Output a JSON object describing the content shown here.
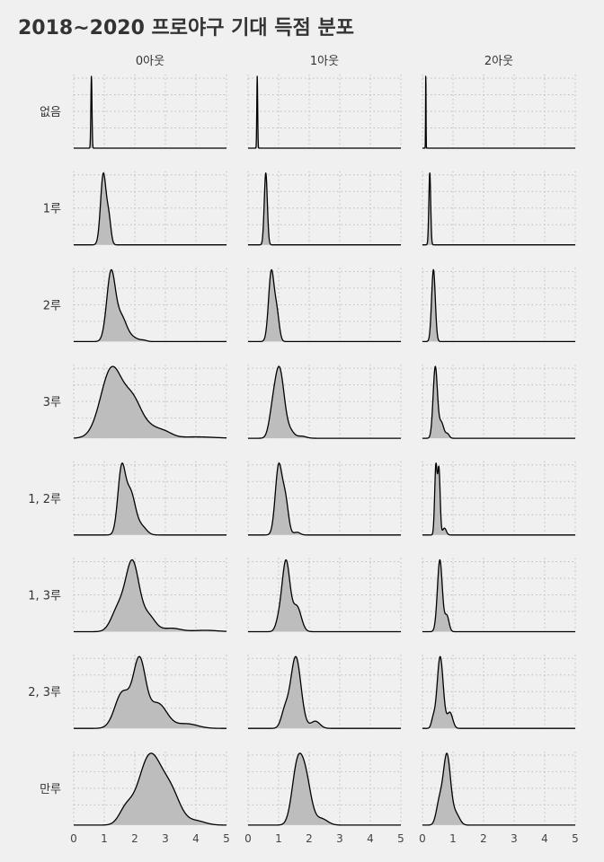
{
  "chart_data": {
    "type": "area",
    "title": "2018~2020 프로야구 기대 득점 분포",
    "columns": [
      "0아웃",
      "1아웃",
      "2아웃"
    ],
    "rows": [
      "없음",
      "1루",
      "2루",
      "3루",
      "1, 2루",
      "1, 3루",
      "2, 3루",
      "만루"
    ],
    "x_ticks": [
      "0",
      "1",
      "2",
      "3",
      "4",
      "5"
    ],
    "xlim": [
      0,
      5
    ],
    "fill_color": "#bdbdbd",
    "line_color": "#000000",
    "grid": "dotted",
    "panels": [
      {
        "row": "없음",
        "col": "0아웃",
        "peaks": [
          [
            0.58,
            0.018,
            1.0
          ]
        ]
      },
      {
        "row": "없음",
        "col": "1아웃",
        "peaks": [
          [
            0.3,
            0.014,
            1.0
          ]
        ]
      },
      {
        "row": "없음",
        "col": "2아웃",
        "peaks": [
          [
            0.11,
            0.007,
            1.0
          ]
        ]
      },
      {
        "row": "1루",
        "col": "0아웃",
        "peaks": [
          [
            0.97,
            0.09,
            1.0
          ],
          [
            1.15,
            0.07,
            0.35
          ]
        ]
      },
      {
        "row": "1루",
        "col": "1아웃",
        "peaks": [
          [
            0.58,
            0.05,
            1.0
          ]
        ]
      },
      {
        "row": "1루",
        "col": "2아웃",
        "peaks": [
          [
            0.24,
            0.03,
            1.0
          ]
        ]
      },
      {
        "row": "2루",
        "col": "0아웃",
        "peaks": [
          [
            1.22,
            0.14,
            1.0
          ],
          [
            1.55,
            0.17,
            0.35
          ],
          [
            1.9,
            0.2,
            0.06
          ],
          [
            2.3,
            0.1,
            0.015
          ]
        ]
      },
      {
        "row": "2루",
        "col": "1아웃",
        "peaks": [
          [
            0.76,
            0.09,
            1.0
          ],
          [
            0.94,
            0.08,
            0.4
          ]
        ]
      },
      {
        "row": "2루",
        "col": "2아웃",
        "peaks": [
          [
            0.36,
            0.06,
            1.0
          ]
        ]
      },
      {
        "row": "3루",
        "col": "0아웃",
        "peaks": [
          [
            1.25,
            0.36,
            1.0
          ],
          [
            1.95,
            0.28,
            0.45
          ],
          [
            2.5,
            0.3,
            0.14
          ],
          [
            3.0,
            0.25,
            0.07
          ],
          [
            4.0,
            0.6,
            0.02
          ]
        ]
      },
      {
        "row": "3루",
        "col": "1아웃",
        "peaks": [
          [
            1.02,
            0.16,
            1.0
          ],
          [
            0.78,
            0.11,
            0.2
          ],
          [
            1.4,
            0.12,
            0.08
          ],
          [
            1.75,
            0.15,
            0.03
          ]
        ]
      },
      {
        "row": "3루",
        "col": "2아웃",
        "peaks": [
          [
            0.42,
            0.07,
            1.0
          ],
          [
            0.62,
            0.08,
            0.22
          ],
          [
            0.82,
            0.06,
            0.06
          ]
        ]
      },
      {
        "row": "1, 2루",
        "col": "0아웃",
        "peaks": [
          [
            1.56,
            0.12,
            1.0
          ],
          [
            1.85,
            0.17,
            0.72
          ],
          [
            2.25,
            0.15,
            0.12
          ]
        ]
      },
      {
        "row": "1, 2루",
        "col": "1아웃",
        "peaks": [
          [
            1.0,
            0.11,
            1.0
          ],
          [
            1.22,
            0.1,
            0.5
          ],
          [
            1.6,
            0.1,
            0.04
          ]
        ]
      },
      {
        "row": "1, 2루",
        "col": "2아웃",
        "peaks": [
          [
            0.44,
            0.04,
            1.0
          ],
          [
            0.54,
            0.04,
            0.95
          ],
          [
            0.72,
            0.06,
            0.1
          ]
        ]
      },
      {
        "row": "1, 3루",
        "col": "0아웃",
        "peaks": [
          [
            1.92,
            0.22,
            1.0
          ],
          [
            1.45,
            0.22,
            0.32
          ],
          [
            2.45,
            0.22,
            0.22
          ],
          [
            3.2,
            0.3,
            0.05
          ],
          [
            4.3,
            0.4,
            0.02
          ]
        ]
      },
      {
        "row": "1, 3루",
        "col": "1아웃",
        "peaks": [
          [
            1.24,
            0.13,
            1.0
          ],
          [
            1.6,
            0.14,
            0.35
          ],
          [
            1.0,
            0.1,
            0.12
          ]
        ]
      },
      {
        "row": "1, 3루",
        "col": "2아웃",
        "peaks": [
          [
            0.57,
            0.08,
            1.0
          ],
          [
            0.8,
            0.07,
            0.22
          ]
        ]
      },
      {
        "row": "2, 3루",
        "col": "0아웃",
        "peaks": [
          [
            2.15,
            0.2,
            1.0
          ],
          [
            1.6,
            0.25,
            0.55
          ],
          [
            2.75,
            0.3,
            0.38
          ],
          [
            3.7,
            0.35,
            0.07
          ]
        ]
      },
      {
        "row": "2, 3루",
        "col": "1아웃",
        "peaks": [
          [
            1.56,
            0.17,
            1.0
          ],
          [
            1.2,
            0.12,
            0.22
          ],
          [
            2.2,
            0.15,
            0.1
          ]
        ]
      },
      {
        "row": "2, 3루",
        "col": "2아웃",
        "peaks": [
          [
            0.58,
            0.1,
            1.0
          ],
          [
            0.9,
            0.09,
            0.22
          ],
          [
            0.35,
            0.06,
            0.12
          ]
        ]
      },
      {
        "row": "만루",
        "col": "0아웃",
        "peaks": [
          [
            2.5,
            0.38,
            1.0
          ],
          [
            3.2,
            0.3,
            0.4
          ],
          [
            1.7,
            0.22,
            0.2
          ],
          [
            4.0,
            0.3,
            0.06
          ]
        ]
      },
      {
        "row": "만루",
        "col": "1아웃",
        "peaks": [
          [
            1.6,
            0.17,
            1.0
          ],
          [
            1.88,
            0.18,
            0.85
          ],
          [
            2.4,
            0.2,
            0.12
          ]
        ]
      },
      {
        "row": "만루",
        "col": "2아웃",
        "peaks": [
          [
            0.8,
            0.12,
            1.0
          ],
          [
            0.55,
            0.1,
            0.3
          ],
          [
            1.1,
            0.12,
            0.15
          ]
        ]
      }
    ]
  }
}
